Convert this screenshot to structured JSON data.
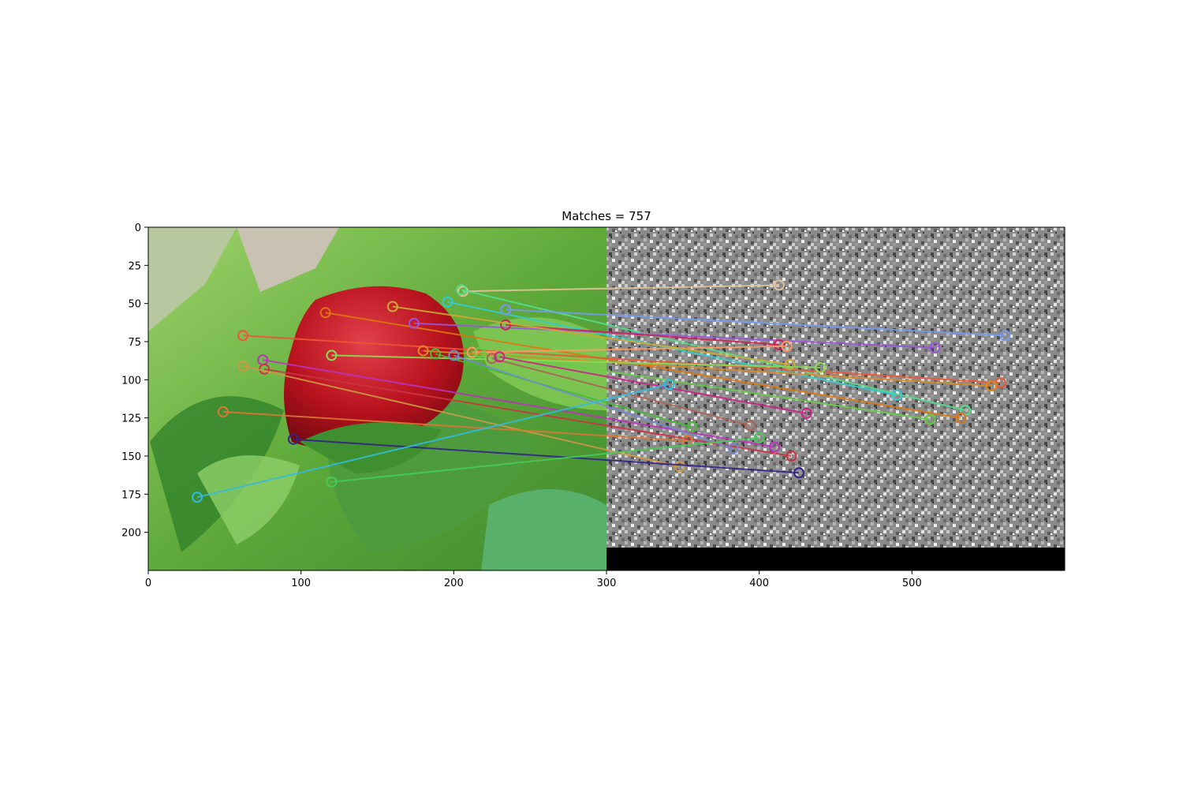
{
  "chart_data": {
    "type": "scatter",
    "title": "Matches = 757",
    "xlabel": "",
    "ylabel": "",
    "xlim": [
      0,
      600
    ],
    "ylim": [
      225,
      0
    ],
    "y_inverted": true,
    "grid": false,
    "x_ticks": [
      0,
      100,
      200,
      300,
      400,
      500
    ],
    "x_tick_labels": [
      "0",
      "100",
      "200",
      "300",
      "400",
      "500"
    ],
    "y_ticks": [
      0,
      25,
      50,
      75,
      100,
      125,
      150,
      175,
      200
    ],
    "y_tick_labels": [
      "0",
      "25",
      "50",
      "75",
      "100",
      "125",
      "150",
      "175",
      "200"
    ],
    "panels": [
      {
        "name": "left-image",
        "content": "photo of a red strawberry among green leaves",
        "x_range": [
          0,
          300
        ],
        "y_range": [
          0,
          225
        ]
      },
      {
        "name": "right-image",
        "content": "grayscale noise texture",
        "x_range": [
          300,
          600
        ],
        "y_range": [
          0,
          210
        ]
      },
      {
        "name": "padding",
        "content": "black",
        "x_range": [
          300,
          600
        ],
        "y_range": [
          210,
          225
        ]
      }
    ],
    "matches": [
      {
        "x1": 206,
        "y1": 42,
        "x2": 413,
        "y2": 38,
        "color": "#e2c49c"
      },
      {
        "x1": 205,
        "y1": 41,
        "x2": 535,
        "y2": 120,
        "color": "#55dd88"
      },
      {
        "x1": 196,
        "y1": 49,
        "x2": 490,
        "y2": 110,
        "color": "#33cccc"
      },
      {
        "x1": 234,
        "y1": 54,
        "x2": 561,
        "y2": 71,
        "color": "#7799ee"
      },
      {
        "x1": 116,
        "y1": 56,
        "x2": 532,
        "y2": 125,
        "color": "#dd7711"
      },
      {
        "x1": 174,
        "y1": 63,
        "x2": 515,
        "y2": 79,
        "color": "#9955dd"
      },
      {
        "x1": 234,
        "y1": 64,
        "x2": 413,
        "y2": 77,
        "color": "#cc2255"
      },
      {
        "x1": 62,
        "y1": 71,
        "x2": 558,
        "y2": 102,
        "color": "#ee5533"
      },
      {
        "x1": 180,
        "y1": 81,
        "x2": 552,
        "y2": 104,
        "color": "#dd8822"
      },
      {
        "x1": 212,
        "y1": 82,
        "x2": 418,
        "y2": 78,
        "color": "#ff9966"
      },
      {
        "x1": 217,
        "y1": 82,
        "x2": 512,
        "y2": 126,
        "color": "#66cc44"
      },
      {
        "x1": 120,
        "y1": 84,
        "x2": 440,
        "y2": 92,
        "color": "#88dd55"
      },
      {
        "x1": 75,
        "y1": 87,
        "x2": 410,
        "y2": 144,
        "color": "#bb33bb"
      },
      {
        "x1": 76,
        "y1": 93,
        "x2": 421,
        "y2": 150,
        "color": "#cc3344"
      },
      {
        "x1": 62,
        "y1": 91,
        "x2": 348,
        "y2": 157,
        "color": "#cc9944"
      },
      {
        "x1": 225,
        "y1": 86,
        "x2": 394,
        "y2": 130,
        "color": "#aa6655"
      },
      {
        "x1": 230,
        "y1": 85,
        "x2": 431,
        "y2": 122,
        "color": "#cc2288"
      },
      {
        "x1": 188,
        "y1": 83,
        "x2": 356,
        "y2": 131,
        "color": "#44bb33"
      },
      {
        "x1": 200,
        "y1": 84,
        "x2": 383,
        "y2": 145,
        "color": "#7788cc"
      },
      {
        "x1": 49,
        "y1": 121,
        "x2": 353,
        "y2": 140,
        "color": "#dd7733"
      },
      {
        "x1": 95,
        "y1": 139,
        "x2": 426,
        "y2": 161,
        "color": "#332288"
      },
      {
        "x1": 32,
        "y1": 177,
        "x2": 341,
        "y2": 103,
        "color": "#33bbdd"
      },
      {
        "x1": 120,
        "y1": 167,
        "x2": 400,
        "y2": 138,
        "color": "#44cc55"
      },
      {
        "x1": 160,
        "y1": 52,
        "x2": 420,
        "y2": 90,
        "color": "#ccaa33"
      }
    ]
  }
}
